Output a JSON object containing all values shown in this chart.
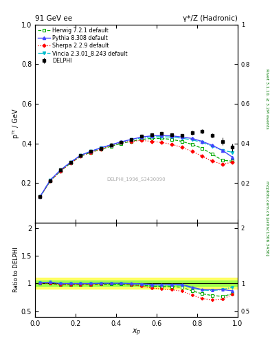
{
  "title_left": "91 GeV ee",
  "title_right": "γ*/Z (Hadronic)",
  "ylabel_main": "pᵀᵗ / GeV",
  "ylabel_ratio": "Ratio to DELPHI",
  "xlabel": "x_p",
  "rivet_label": "Rivet 3.1.10, ≥ 3.2M events",
  "mcplots_label": "mcplots.cern.ch [arXiv:1306.3436]",
  "dataset_label": "DELPHI_1996_S3430090",
  "ylim_main": [
    0.0,
    1.0
  ],
  "ylim_ratio": [
    0.4,
    2.1
  ],
  "xlim": [
    0.0,
    1.0
  ],
  "delphi_x": [
    0.025,
    0.075,
    0.125,
    0.175,
    0.225,
    0.275,
    0.325,
    0.375,
    0.425,
    0.475,
    0.525,
    0.575,
    0.625,
    0.675,
    0.725,
    0.775,
    0.825,
    0.875,
    0.925,
    0.975
  ],
  "delphi_y": [
    0.13,
    0.21,
    0.265,
    0.305,
    0.34,
    0.36,
    0.375,
    0.39,
    0.405,
    0.42,
    0.435,
    0.445,
    0.45,
    0.445,
    0.44,
    0.455,
    0.46,
    0.44,
    0.41,
    0.38
  ],
  "delphi_yerr": [
    0.005,
    0.005,
    0.005,
    0.005,
    0.005,
    0.005,
    0.005,
    0.005,
    0.005,
    0.005,
    0.005,
    0.005,
    0.005,
    0.005,
    0.005,
    0.01,
    0.01,
    0.01,
    0.02,
    0.02
  ],
  "herwig_x": [
    0.025,
    0.075,
    0.125,
    0.175,
    0.225,
    0.275,
    0.325,
    0.375,
    0.425,
    0.475,
    0.525,
    0.575,
    0.625,
    0.675,
    0.725,
    0.775,
    0.825,
    0.875,
    0.925,
    0.975
  ],
  "herwig_y": [
    0.13,
    0.21,
    0.26,
    0.3,
    0.335,
    0.355,
    0.37,
    0.385,
    0.4,
    0.41,
    0.42,
    0.425,
    0.425,
    0.42,
    0.41,
    0.395,
    0.375,
    0.345,
    0.315,
    0.31
  ],
  "herwig_color": "#00aa00",
  "herwig_linestyle": "--",
  "pythia_x": [
    0.025,
    0.075,
    0.125,
    0.175,
    0.225,
    0.275,
    0.325,
    0.375,
    0.425,
    0.475,
    0.525,
    0.575,
    0.625,
    0.675,
    0.725,
    0.775,
    0.825,
    0.875,
    0.925,
    0.975
  ],
  "pythia_y": [
    0.132,
    0.215,
    0.265,
    0.305,
    0.34,
    0.36,
    0.378,
    0.393,
    0.408,
    0.42,
    0.432,
    0.438,
    0.44,
    0.438,
    0.432,
    0.425,
    0.41,
    0.39,
    0.365,
    0.33
  ],
  "pythia_color": "#4444ff",
  "pythia_linestyle": "-",
  "sherpa_x": [
    0.025,
    0.075,
    0.125,
    0.175,
    0.225,
    0.275,
    0.325,
    0.375,
    0.425,
    0.475,
    0.525,
    0.575,
    0.625,
    0.675,
    0.725,
    0.775,
    0.825,
    0.875,
    0.925,
    0.975
  ],
  "sherpa_y": [
    0.13,
    0.21,
    0.26,
    0.3,
    0.335,
    0.355,
    0.37,
    0.39,
    0.405,
    0.41,
    0.415,
    0.41,
    0.405,
    0.395,
    0.38,
    0.36,
    0.335,
    0.31,
    0.295,
    0.305
  ],
  "sherpa_color": "#ff0000",
  "sherpa_linestyle": ":",
  "vincia_x": [
    0.025,
    0.075,
    0.125,
    0.175,
    0.225,
    0.275,
    0.325,
    0.375,
    0.425,
    0.475,
    0.525,
    0.575,
    0.625,
    0.675,
    0.725,
    0.775,
    0.825,
    0.875,
    0.925,
    0.975
  ],
  "vincia_y": [
    0.132,
    0.215,
    0.265,
    0.305,
    0.34,
    0.36,
    0.377,
    0.392,
    0.406,
    0.418,
    0.428,
    0.433,
    0.434,
    0.432,
    0.426,
    0.418,
    0.405,
    0.385,
    0.365,
    0.355
  ],
  "vincia_color": "#00bbcc",
  "vincia_linestyle": "-.",
  "band_color_yellow": "#ffff44",
  "band_color_green": "#88ff44",
  "band_lo": 0.9,
  "band_hi": 1.1
}
